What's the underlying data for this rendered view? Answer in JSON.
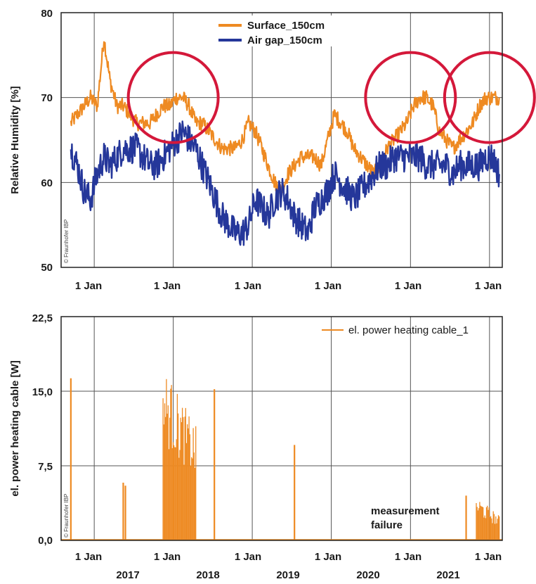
{
  "colors": {
    "orange": "#EE8A22",
    "navy": "#25379A",
    "circle": "#D4183A",
    "grid": "#555555"
  },
  "chart_data": [
    {
      "type": "line",
      "ylabel": "Relative Humidity [%]",
      "ylim": [
        50,
        80
      ],
      "y_ticks": [
        "50",
        "60",
        "70",
        "80"
      ],
      "x_tick_labels": [
        "1 Jan",
        "1 Jan",
        "1 Jan",
        "1 Jan",
        "1 Jan",
        "1 Jan"
      ],
      "legend_position": "top-center",
      "grid": true,
      "credit": "© Fraunhofer IBP",
      "highlight_circles_center_dates": [
        "2018-01",
        "2021-01",
        "2022-01"
      ],
      "series": [
        {
          "name": "Surface_150cm",
          "color": "#EE8A22",
          "x": [
            "2016-09",
            "2016-10",
            "2016-11",
            "2016-12",
            "2017-01",
            "2017-02",
            "2017-03",
            "2017-04",
            "2017-05",
            "2017-06",
            "2017-07",
            "2017-08",
            "2017-09",
            "2017-10",
            "2017-11",
            "2017-12",
            "2018-01",
            "2018-02",
            "2018-03",
            "2018-04",
            "2018-05",
            "2018-06",
            "2018-07",
            "2018-08",
            "2018-09",
            "2018-10",
            "2018-11",
            "2018-12",
            "2019-01",
            "2019-02",
            "2019-03",
            "2019-04",
            "2019-05",
            "2019-06",
            "2019-07",
            "2019-08",
            "2019-09",
            "2019-10",
            "2019-11",
            "2019-12",
            "2020-01",
            "2020-02",
            "2020-03",
            "2020-04",
            "2020-05",
            "2020-06",
            "2020-07",
            "2020-08",
            "2020-09",
            "2020-10",
            "2020-11",
            "2020-12",
            "2021-01",
            "2021-02",
            "2021-03",
            "2021-04",
            "2021-05",
            "2021-06",
            "2021-07",
            "2021-08",
            "2021-09",
            "2021-10",
            "2021-11",
            "2021-12",
            "2022-01",
            "2022-02"
          ],
          "values": [
            67,
            68,
            69,
            70,
            69,
            77,
            72,
            69,
            69,
            68,
            67,
            67,
            67,
            68,
            69,
            69,
            70,
            70,
            69,
            67,
            67,
            66,
            65,
            64,
            64,
            64,
            65,
            67,
            66,
            64,
            62,
            60,
            59,
            61,
            62,
            63,
            63,
            63,
            62,
            65,
            68,
            67,
            66,
            64,
            63,
            62,
            61,
            62,
            64,
            65,
            66,
            67,
            69,
            70,
            70,
            69,
            66,
            65,
            64,
            65,
            66,
            67,
            69,
            70,
            70,
            70
          ]
        },
        {
          "name": "Air gap_150cm",
          "color": "#25379A",
          "x": [
            "2016-09",
            "2016-10",
            "2016-11",
            "2016-12",
            "2017-01",
            "2017-02",
            "2017-03",
            "2017-04",
            "2017-05",
            "2017-06",
            "2017-07",
            "2017-08",
            "2017-09",
            "2017-10",
            "2017-11",
            "2017-12",
            "2018-01",
            "2018-02",
            "2018-03",
            "2018-04",
            "2018-05",
            "2018-06",
            "2018-07",
            "2018-08",
            "2018-09",
            "2018-10",
            "2018-11",
            "2018-12",
            "2019-01",
            "2019-02",
            "2019-03",
            "2019-04",
            "2019-05",
            "2019-06",
            "2019-07",
            "2019-08",
            "2019-09",
            "2019-10",
            "2019-11",
            "2019-12",
            "2020-01",
            "2020-02",
            "2020-03",
            "2020-04",
            "2020-05",
            "2020-06",
            "2020-07",
            "2020-08",
            "2020-09",
            "2020-10",
            "2020-11",
            "2020-12",
            "2021-01",
            "2021-02",
            "2021-03",
            "2021-04",
            "2021-05",
            "2021-06",
            "2021-07",
            "2021-08",
            "2021-09",
            "2021-10",
            "2021-11",
            "2021-12",
            "2022-01",
            "2022-02"
          ],
          "values": [
            64,
            62,
            59,
            58,
            61,
            63,
            62,
            63,
            64,
            64,
            64,
            63,
            62,
            62,
            63,
            64,
            65,
            66,
            65,
            64,
            62,
            60,
            58,
            56,
            55,
            54,
            54,
            55,
            58,
            57,
            56,
            58,
            59,
            58,
            56,
            55,
            54,
            57,
            58,
            59,
            61,
            60,
            59,
            58,
            59,
            60,
            61,
            62,
            62,
            63,
            63,
            63,
            63,
            63,
            62,
            62,
            62,
            62,
            61,
            62,
            62,
            62,
            62,
            63,
            63,
            61
          ]
        }
      ]
    },
    {
      "type": "line",
      "ylabel": "el. power heating cable [W]",
      "ylim": [
        0,
        22.5
      ],
      "y_ticks": [
        "0,0",
        "7,5",
        "15,0",
        "22,5"
      ],
      "x_tick_labels": [
        "1 Jan",
        "1 Jan",
        "1 Jan",
        "1 Jan",
        "1 Jan",
        "1 Jan"
      ],
      "year_labels": [
        "2017",
        "2018",
        "2019",
        "2020",
        "2021"
      ],
      "legend_position": "top-right",
      "grid": true,
      "credit": "© Fraunhofer IBP",
      "annotation": [
        "measurement",
        "failure"
      ],
      "series": [
        {
          "name": "el. power heating cable_1",
          "color": "#EE8A22",
          "spikes": [
            {
              "date": "2016-09-15",
              "value": 16.3
            },
            {
              "date": "2017-05-15",
              "value": 5.8
            },
            {
              "date": "2017-05-25",
              "value": 5.5
            },
            {
              "date": "2018-07-10",
              "value": 15.2
            },
            {
              "date": "2019-07-15",
              "value": 9.6
            },
            {
              "date": "2021-09-15",
              "value": 4.5
            }
          ],
          "bursts": [
            {
              "start": "2017-11-15",
              "end": "2018-04-15",
              "max": 17.6,
              "min": 11.5
            },
            {
              "start": "2021-11-01",
              "end": "2022-02-15",
              "max": 4.5,
              "min": 2.5
            }
          ]
        }
      ]
    }
  ]
}
